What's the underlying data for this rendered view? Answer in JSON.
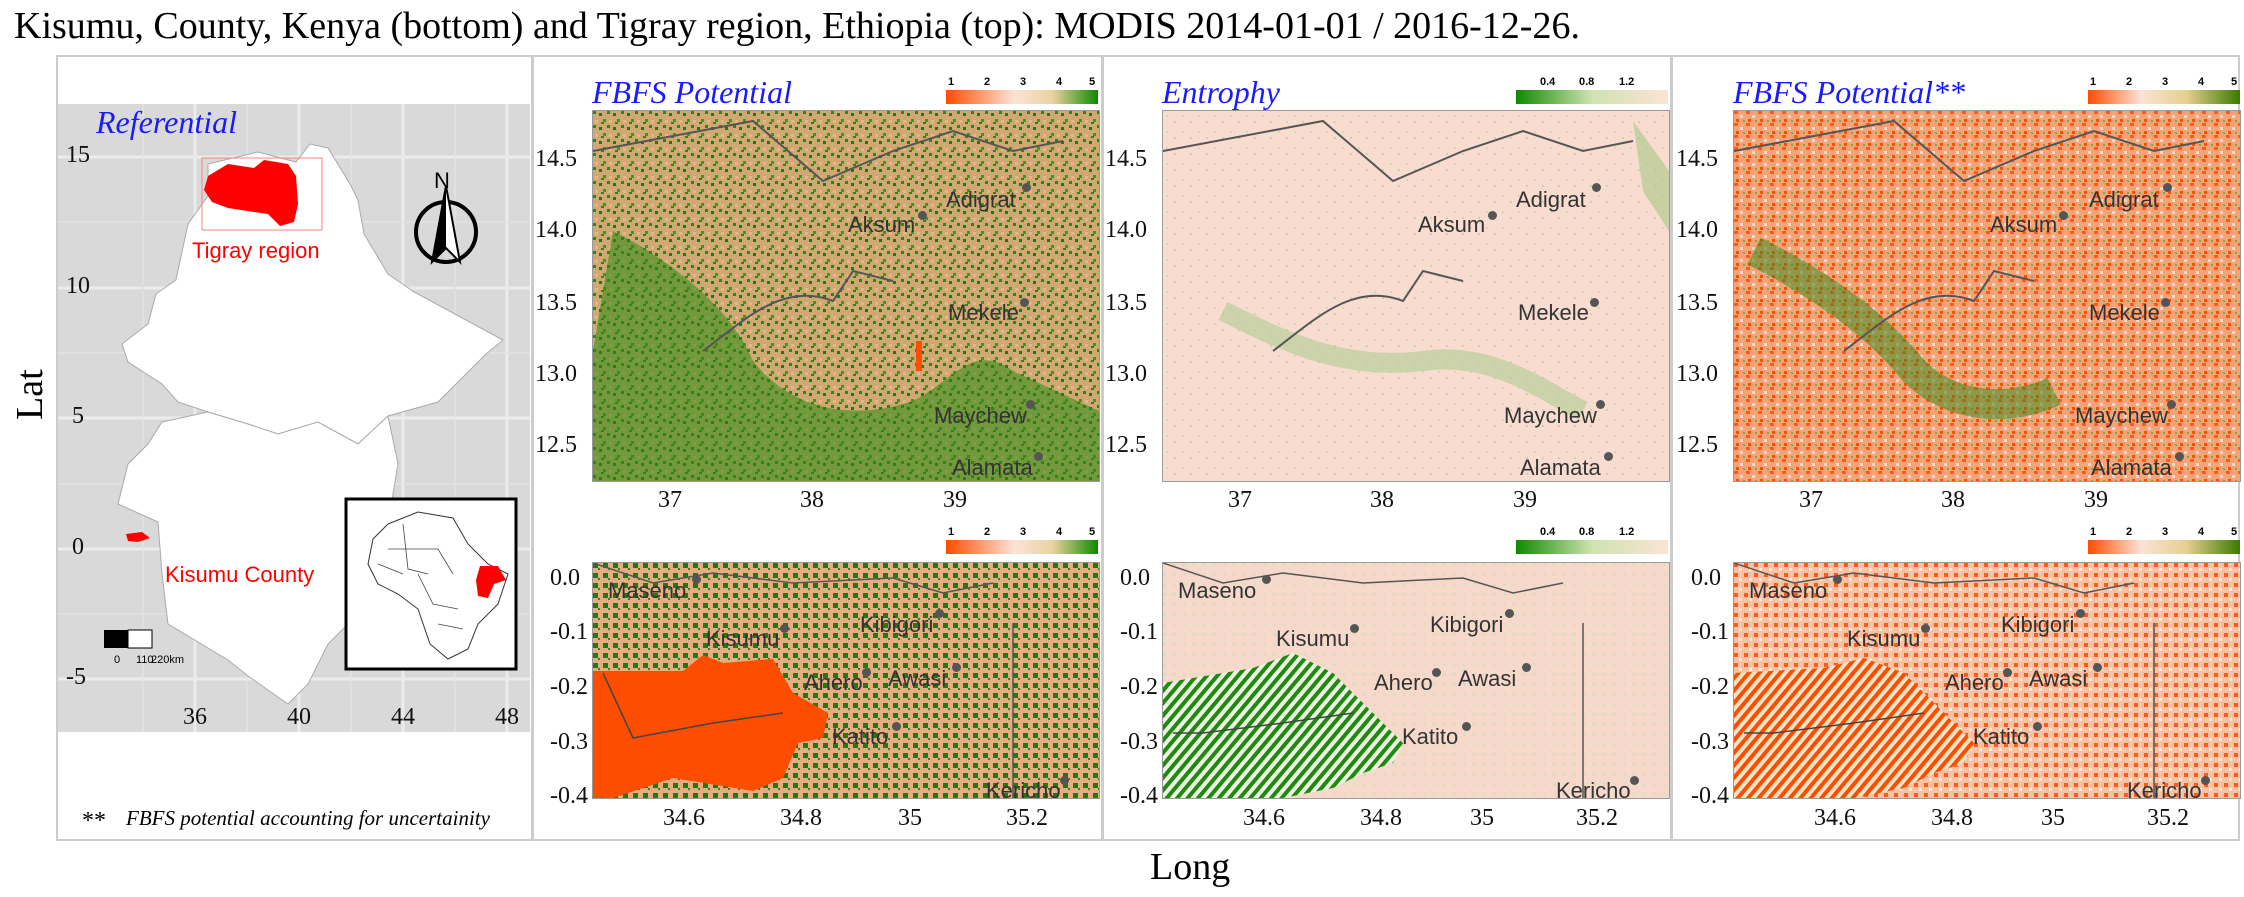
{
  "title": "Kisumu, County, Kenya (bottom) and Tigray region, Ethiopia (top): MODIS 2014-01-01 / 2016-12-26.",
  "axes": {
    "ylabel": "Lat",
    "xlabel": "Long"
  },
  "referential": {
    "title": "Referential",
    "y_ticks": [
      "15",
      "10",
      "5",
      "0",
      "-5"
    ],
    "x_ticks": [
      "36",
      "40",
      "44",
      "48"
    ],
    "tigray_label": "Tigray region",
    "kisumu_label": "Kisumu County",
    "north": "N",
    "scale_labels": [
      "0",
      "110",
      "220km"
    ]
  },
  "footnote": {
    "marker": "**",
    "text": "FBFS potential accounting for uncertainity"
  },
  "panels": {
    "fbfs": {
      "title": "FBFS Potential",
      "legend": [
        "1",
        "2",
        "3",
        "4",
        "5"
      ]
    },
    "entropy": {
      "title": "Entrophy",
      "legend": [
        "0.4",
        "0.8",
        "1.2"
      ]
    },
    "fbfs2": {
      "title": "FBFS Potential**",
      "legend": [
        "1",
        "2",
        "3",
        "4",
        "5"
      ]
    }
  },
  "tigray": {
    "y_ticks": [
      "14.5",
      "14.0",
      "13.5",
      "13.0",
      "12.5"
    ],
    "x_ticks": [
      "37",
      "38",
      "39"
    ],
    "cities": [
      "Adigrat",
      "Aksum",
      "Mekele",
      "Maychew",
      "Alamata"
    ]
  },
  "kisumu": {
    "y_ticks": [
      "0.0",
      "-0.1",
      "-0.2",
      "-0.3",
      "-0.4"
    ],
    "x_ticks": [
      "34.6",
      "34.8",
      "35",
      "35.2"
    ],
    "cities": [
      "Maseno",
      "Kisumu",
      "Kibigori",
      "Ahero",
      "Awasi",
      "Katito",
      "Kericho"
    ]
  },
  "colors": {
    "orange": "#ff4d00",
    "peach": "#f2b38a",
    "green": "#1f7a0f",
    "pink": "#fbe0d6",
    "sea": "#d9d9d9"
  }
}
